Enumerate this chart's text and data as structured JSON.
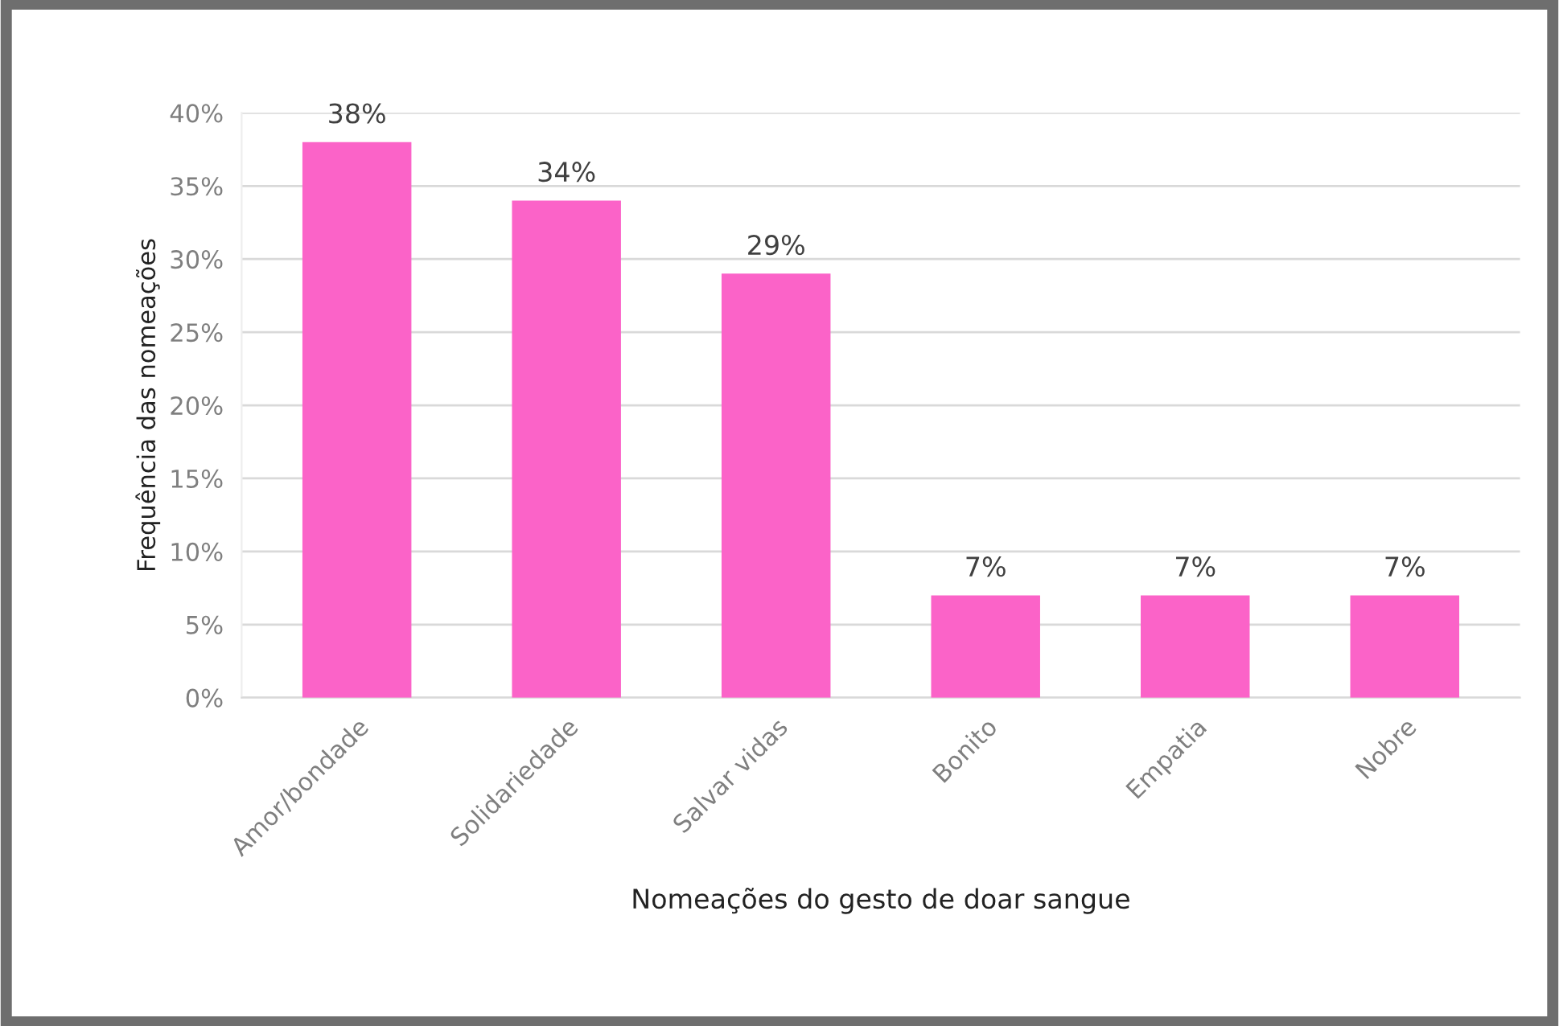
{
  "chart_data": {
    "type": "bar",
    "xlabel": "Nomeações do gesto de doar sangue",
    "ylabel": "Frequência das nomeações",
    "categories": [
      "Amor/bondade",
      "Solidariedade",
      "Salvar vidas",
      "Bonito",
      "Empatia",
      "Nobre"
    ],
    "values": [
      38,
      34,
      29,
      7,
      7,
      7
    ],
    "value_labels": [
      "38%",
      "34%",
      "29%",
      "7%",
      "7%",
      "7%"
    ],
    "color": "#fb63c8",
    "ylim": [
      0,
      40
    ],
    "yticks": [
      {
        "value": 0,
        "label": "0%"
      },
      {
        "value": 5,
        "label": "5%"
      },
      {
        "value": 10,
        "label": "10%"
      },
      {
        "value": 15,
        "label": "15%"
      },
      {
        "value": 20,
        "label": "20%"
      },
      {
        "value": 25,
        "label": "25%"
      },
      {
        "value": 30,
        "label": "30%"
      },
      {
        "value": 35,
        "label": "35%"
      },
      {
        "value": 40,
        "label": "40%"
      }
    ],
    "grid": "y"
  }
}
